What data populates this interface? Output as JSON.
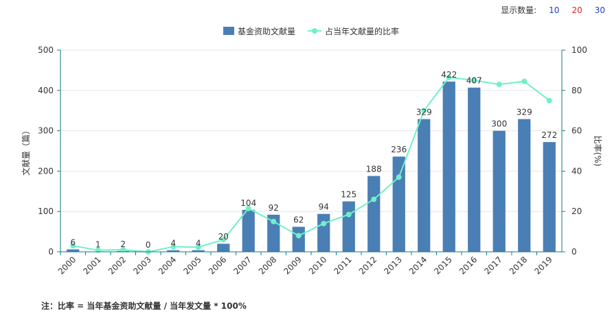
{
  "controls": {
    "display_label": "显示数量:",
    "options": [
      {
        "label": "10",
        "color": "#1f3fbf"
      },
      {
        "label": "20",
        "color": "#e02020"
      },
      {
        "label": "30",
        "color": "#1f3fbf"
      }
    ]
  },
  "footnote": "注：比率 = 当年基金资助文献量 / 当年发文量 * 100%",
  "colors": {
    "bar": "#4a7fb5",
    "line": "#6ff0c8",
    "grid": "#e6e6e6",
    "axis": "#0f7a8a"
  },
  "chart_data": {
    "type": "bar",
    "categories": [
      "2000",
      "2001",
      "2002",
      "2003",
      "2004",
      "2005",
      "2006",
      "2007",
      "2008",
      "2009",
      "2010",
      "2011",
      "2012",
      "2013",
      "2014",
      "2015",
      "2016",
      "2017",
      "2018",
      "2019"
    ],
    "series": [
      {
        "name": "基金资助文献量",
        "type": "bar",
        "axis": "left",
        "values": [
          6,
          1,
          2,
          0,
          4,
          4,
          20,
          104,
          92,
          62,
          94,
          125,
          188,
          236,
          329,
          422,
          407,
          300,
          329,
          272
        ]
      },
      {
        "name": "占当年文献量的比率",
        "type": "line",
        "axis": "right",
        "values": [
          3,
          0.8,
          1,
          0,
          2.5,
          2.3,
          6,
          21.5,
          15,
          8,
          14,
          18.5,
          26,
          37,
          70,
          86.5,
          85,
          83,
          84.5,
          75
        ]
      }
    ],
    "ylabel": "文献量（篇）",
    "y2label": "比率(%)",
    "ylim": [
      0,
      500
    ],
    "y2lim": [
      0,
      100
    ],
    "yticks": [
      0,
      100,
      200,
      300,
      400,
      500
    ],
    "y2ticks": [
      0,
      20,
      40,
      60,
      80,
      100
    ],
    "grid": true,
    "legend_position": "top-center"
  }
}
